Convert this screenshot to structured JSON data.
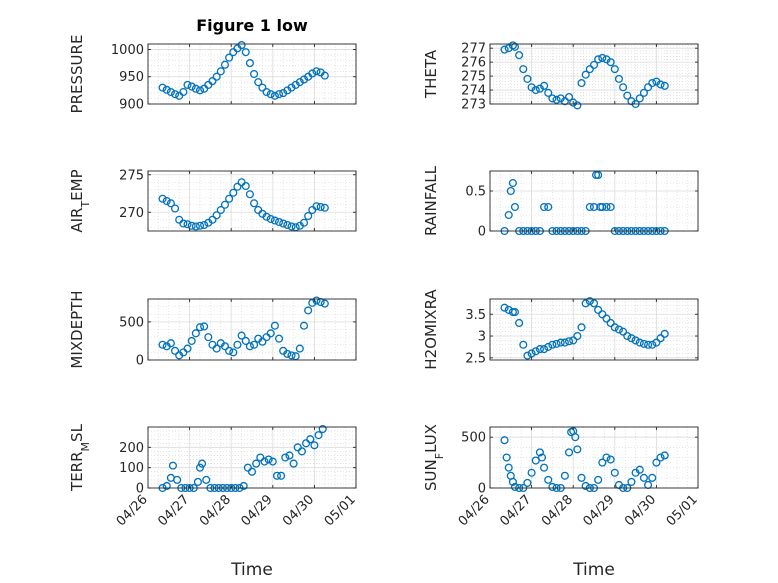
{
  "figure": {
    "title": "Figure 1 low",
    "xlabel": "Time"
  },
  "colors": {
    "marker": "#0072bd",
    "axis": "#262626",
    "grid": "#d4d4d4"
  },
  "chart_data": [
    {
      "type": "scatter",
      "ylabel": "PRESSURE",
      "ylim": [
        900,
        1010
      ],
      "yticks": [
        900,
        950,
        1000
      ],
      "xlim": [
        0,
        5
      ],
      "xticks": [],
      "x": [
        0.35,
        0.45,
        0.55,
        0.65,
        0.75,
        0.85,
        0.95,
        1.05,
        1.15,
        1.25,
        1.35,
        1.45,
        1.55,
        1.65,
        1.75,
        1.85,
        1.95,
        2.05,
        2.15,
        2.25,
        2.35,
        2.45,
        2.55,
        2.65,
        2.75,
        2.85,
        2.95,
        3.05,
        3.15,
        3.25,
        3.35,
        3.45,
        3.55,
        3.65,
        3.75,
        3.85,
        3.95,
        4.05,
        4.15,
        4.25
      ],
      "y": [
        930,
        926,
        922,
        918,
        915,
        922,
        935,
        932,
        928,
        925,
        928,
        935,
        942,
        950,
        960,
        972,
        985,
        995,
        1002,
        1008,
        995,
        975,
        955,
        940,
        930,
        922,
        918,
        915,
        918,
        920,
        925,
        930,
        935,
        940,
        945,
        950,
        956,
        960,
        958,
        952
      ]
    },
    {
      "type": "scatter",
      "ylabel": "THETA",
      "ylim": [
        273,
        277.3
      ],
      "yticks": [
        273,
        274,
        275,
        276,
        277
      ],
      "xlim": [
        0,
        5
      ],
      "xticks": [],
      "x": [
        0.35,
        0.45,
        0.55,
        0.6,
        0.7,
        0.8,
        0.9,
        1.0,
        1.1,
        1.2,
        1.3,
        1.4,
        1.5,
        1.6,
        1.7,
        1.8,
        1.9,
        2.0,
        2.1,
        2.2,
        2.3,
        2.4,
        2.5,
        2.6,
        2.7,
        2.8,
        2.9,
        3.0,
        3.1,
        3.2,
        3.3,
        3.4,
        3.5,
        3.6,
        3.7,
        3.8,
        3.9,
        4.0,
        4.1,
        4.2
      ],
      "y": [
        276.9,
        277.0,
        277.2,
        277.1,
        276.5,
        275.5,
        274.8,
        274.2,
        274.0,
        274.1,
        274.3,
        273.8,
        273.4,
        273.3,
        273.4,
        273.2,
        273.5,
        273.1,
        272.9,
        274.5,
        275.1,
        275.5,
        275.8,
        276.2,
        276.3,
        276.2,
        276.0,
        275.5,
        274.8,
        274.2,
        273.6,
        273.2,
        273.0,
        273.4,
        273.8,
        274.2,
        274.5,
        274.6,
        274.4,
        274.3
      ]
    },
    {
      "type": "scatter",
      "ylabel": "AIR_TEMP",
      "ylim": [
        267.5,
        275.5
      ],
      "yticks": [
        270,
        275
      ],
      "xlim": [
        0,
        5
      ],
      "xticks": [],
      "x": [
        0.35,
        0.45,
        0.55,
        0.65,
        0.75,
        0.85,
        0.95,
        1.05,
        1.15,
        1.25,
        1.35,
        1.45,
        1.55,
        1.65,
        1.75,
        1.85,
        1.95,
        2.05,
        2.15,
        2.25,
        2.35,
        2.45,
        2.55,
        2.65,
        2.75,
        2.85,
        2.95,
        3.05,
        3.15,
        3.25,
        3.35,
        3.45,
        3.55,
        3.65,
        3.75,
        3.85,
        3.95,
        4.05,
        4.15,
        4.25
      ],
      "y": [
        271.8,
        271.5,
        271.2,
        270.5,
        269.0,
        268.5,
        268.4,
        268.2,
        268.1,
        268.2,
        268.3,
        268.6,
        269.0,
        269.6,
        270.3,
        271.0,
        271.8,
        272.6,
        273.4,
        274.0,
        273.5,
        272.4,
        271.2,
        270.3,
        269.8,
        269.4,
        269.1,
        268.9,
        268.7,
        268.5,
        268.3,
        268.1,
        268.0,
        268.2,
        268.6,
        269.5,
        270.3,
        270.8,
        270.7,
        270.6
      ]
    },
    {
      "type": "scatter",
      "ylabel": "RAINFALL",
      "ylim": [
        0,
        0.75
      ],
      "yticks": [
        0,
        0.5
      ],
      "xlim": [
        0,
        5
      ],
      "xticks": [],
      "x": [
        0.35,
        0.45,
        0.5,
        0.55,
        0.6,
        0.7,
        0.8,
        0.9,
        1.0,
        1.1,
        1.2,
        1.3,
        1.4,
        1.5,
        1.6,
        1.7,
        1.8,
        1.9,
        2.0,
        2.1,
        2.2,
        2.3,
        2.4,
        2.5,
        2.55,
        2.6,
        2.65,
        2.7,
        2.8,
        2.9,
        3.0,
        3.1,
        3.2,
        3.3,
        3.4,
        3.5,
        3.6,
        3.7,
        3.8,
        3.9,
        4.0,
        4.1,
        4.2
      ],
      "y": [
        0,
        0.2,
        0.5,
        0.6,
        0.3,
        0,
        0,
        0,
        0,
        0,
        0,
        0.3,
        0.3,
        0,
        0,
        0,
        0,
        0,
        0,
        0,
        0,
        0,
        0.3,
        0.3,
        0.7,
        0.7,
        0.3,
        0.3,
        0.3,
        0.3,
        0,
        0,
        0,
        0,
        0,
        0,
        0,
        0,
        0,
        0,
        0,
        0,
        0
      ]
    },
    {
      "type": "scatter",
      "ylabel": "MIXDEPTH",
      "ylim": [
        0,
        800
      ],
      "yticks": [
        0,
        500
      ],
      "xlim": [
        0,
        5
      ],
      "xticks": [],
      "x": [
        0.35,
        0.45,
        0.55,
        0.65,
        0.75,
        0.85,
        0.95,
        1.05,
        1.15,
        1.25,
        1.35,
        1.45,
        1.55,
        1.65,
        1.75,
        1.85,
        1.95,
        2.05,
        2.15,
        2.25,
        2.35,
        2.45,
        2.55,
        2.65,
        2.75,
        2.85,
        2.95,
        3.05,
        3.15,
        3.25,
        3.35,
        3.45,
        3.55,
        3.65,
        3.75,
        3.85,
        3.95,
        4.05,
        4.15,
        4.25
      ],
      "y": [
        200,
        180,
        220,
        120,
        60,
        100,
        150,
        250,
        350,
        430,
        440,
        300,
        200,
        150,
        220,
        180,
        120,
        100,
        200,
        320,
        250,
        180,
        200,
        280,
        240,
        300,
        350,
        450,
        280,
        120,
        80,
        60,
        50,
        150,
        450,
        650,
        750,
        780,
        760,
        740
      ]
    },
    {
      "type": "scatter",
      "ylabel": "H2OMIXRA",
      "ylim": [
        2.45,
        3.85
      ],
      "yticks": [
        2.5,
        3,
        3.5
      ],
      "xlim": [
        0,
        5
      ],
      "xticks": [],
      "x": [
        0.35,
        0.45,
        0.55,
        0.6,
        0.7,
        0.8,
        0.9,
        1.0,
        1.1,
        1.2,
        1.3,
        1.4,
        1.5,
        1.6,
        1.7,
        1.8,
        1.9,
        2.0,
        2.1,
        2.2,
        2.3,
        2.4,
        2.5,
        2.6,
        2.7,
        2.8,
        2.9,
        3.0,
        3.1,
        3.2,
        3.3,
        3.4,
        3.5,
        3.6,
        3.7,
        3.8,
        3.9,
        4.0,
        4.1,
        4.2
      ],
      "y": [
        3.65,
        3.6,
        3.55,
        3.55,
        3.3,
        2.8,
        2.55,
        2.6,
        2.65,
        2.7,
        2.7,
        2.75,
        2.8,
        2.82,
        2.85,
        2.85,
        2.88,
        2.9,
        3.0,
        3.2,
        3.75,
        3.8,
        3.75,
        3.6,
        3.5,
        3.4,
        3.3,
        3.2,
        3.15,
        3.1,
        3.0,
        2.95,
        2.9,
        2.85,
        2.82,
        2.8,
        2.8,
        2.85,
        2.95,
        3.05
      ]
    },
    {
      "type": "scatter",
      "ylabel": "TERR_MSL",
      "ylim": [
        0,
        300
      ],
      "yticks": [
        0,
        100,
        200
      ],
      "xlim": [
        0,
        5
      ],
      "xticks": [
        0,
        1,
        2,
        3,
        4,
        5
      ],
      "xticklabels": [
        "04/26",
        "04/27",
        "04/28",
        "04/29",
        "04/30",
        "05/01"
      ],
      "x": [
        0.35,
        0.45,
        0.55,
        0.6,
        0.7,
        0.8,
        0.9,
        1.0,
        1.1,
        1.2,
        1.25,
        1.3,
        1.4,
        1.5,
        1.6,
        1.7,
        1.8,
        1.9,
        2.0,
        2.1,
        2.2,
        2.3,
        2.4,
        2.5,
        2.6,
        2.7,
        2.8,
        2.9,
        3.0,
        3.1,
        3.2,
        3.3,
        3.4,
        3.5,
        3.6,
        3.7,
        3.8,
        3.9,
        4.0,
        4.1,
        4.2
      ],
      "y": [
        0,
        10,
        50,
        110,
        40,
        0,
        0,
        0,
        0,
        30,
        100,
        120,
        40,
        0,
        0,
        0,
        0,
        0,
        0,
        0,
        0,
        10,
        100,
        80,
        120,
        150,
        130,
        140,
        130,
        60,
        60,
        150,
        160,
        120,
        200,
        180,
        220,
        240,
        210,
        260,
        290
      ]
    },
    {
      "type": "scatter",
      "ylabel": "SUN_FLUX",
      "ylim": [
        0,
        600
      ],
      "yticks": [
        0,
        500
      ],
      "xlim": [
        0,
        5
      ],
      "xticks": [
        0,
        1,
        2,
        3,
        4,
        5
      ],
      "xticklabels": [
        "04/26",
        "04/27",
        "04/28",
        "04/29",
        "04/30",
        "05/01"
      ],
      "x": [
        0.35,
        0.4,
        0.45,
        0.5,
        0.55,
        0.6,
        0.7,
        0.8,
        0.9,
        1.0,
        1.1,
        1.2,
        1.25,
        1.3,
        1.4,
        1.5,
        1.6,
        1.7,
        1.8,
        1.9,
        1.95,
        2.0,
        2.05,
        2.1,
        2.2,
        2.3,
        2.4,
        2.5,
        2.6,
        2.7,
        2.8,
        2.9,
        3.0,
        3.1,
        3.2,
        3.3,
        3.4,
        3.5,
        3.6,
        3.7,
        3.8,
        3.9,
        4.0,
        4.1,
        4.2
      ],
      "y": [
        470,
        300,
        200,
        120,
        60,
        10,
        0,
        0,
        50,
        150,
        270,
        350,
        300,
        200,
        80,
        10,
        0,
        0,
        120,
        350,
        550,
        560,
        500,
        380,
        100,
        20,
        0,
        0,
        80,
        250,
        300,
        280,
        150,
        30,
        0,
        0,
        60,
        150,
        180,
        100,
        30,
        100,
        250,
        300,
        320
      ]
    }
  ]
}
